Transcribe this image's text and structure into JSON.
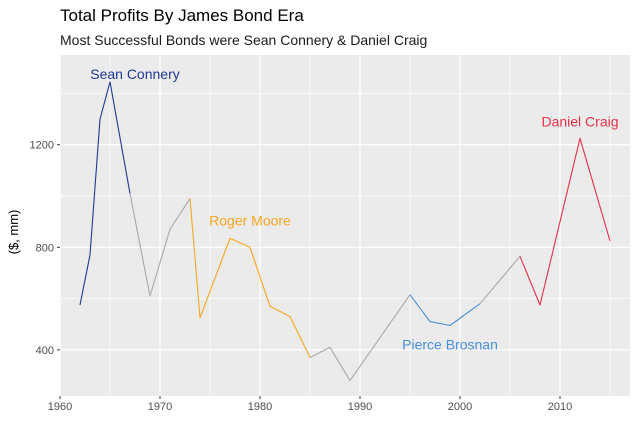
{
  "chart_data": {
    "type": "line",
    "title": "Total Profits By James Bond Era",
    "subtitle": "Most Successful Bonds were Sean Connery & Daniel Craig",
    "xlabel": "",
    "ylabel": "($, mm)",
    "xlim": [
      1960,
      2017
    ],
    "ylim": [
      220,
      1550
    ],
    "x_ticks": [
      1960,
      1970,
      1980,
      1990,
      2000,
      2010
    ],
    "y_ticks": [
      400,
      800,
      1200
    ],
    "grid": true,
    "background": "#EBEBEB",
    "gridline_color": "#FFFFFF",
    "series": [
      {
        "name": "Sean Connery",
        "color": "#1F3A93",
        "label_anchor": [
          1967.5,
          1475
        ],
        "points": [
          [
            1962,
            575
          ],
          [
            1963,
            770
          ],
          [
            1964,
            1300
          ],
          [
            1965,
            1445
          ],
          [
            1967,
            1010
          ]
        ]
      },
      {
        "name": "",
        "color": "#A9A9A9",
        "label_anchor": null,
        "points": [
          [
            1967,
            1010
          ],
          [
            1969,
            610
          ],
          [
            1971,
            870
          ],
          [
            1973,
            990
          ]
        ]
      },
      {
        "name": "Roger Moore",
        "color": "#F5A623",
        "label_anchor": [
          1979,
          905
        ],
        "points": [
          [
            1973,
            990
          ],
          [
            1974,
            525
          ],
          [
            1977,
            835
          ],
          [
            1979,
            800
          ],
          [
            1981,
            570
          ],
          [
            1983,
            530
          ],
          [
            1985,
            370
          ]
        ]
      },
      {
        "name": "",
        "color": "#A9A9A9",
        "label_anchor": null,
        "points": [
          [
            1985,
            370
          ],
          [
            1987,
            410
          ],
          [
            1989,
            280
          ],
          [
            1995,
            615
          ]
        ]
      },
      {
        "name": "Pierce Brosnan",
        "color": "#4A90D9",
        "label_anchor": [
          1999,
          420
        ],
        "points": [
          [
            1995,
            615
          ],
          [
            1997,
            510
          ],
          [
            1999,
            495
          ],
          [
            2002,
            580
          ]
        ]
      },
      {
        "name": "",
        "color": "#A9A9A9",
        "label_anchor": null,
        "points": [
          [
            2002,
            580
          ],
          [
            2006,
            765
          ]
        ]
      },
      {
        "name": "Daniel Craig",
        "color": "#E8304A",
        "label_anchor": [
          2012,
          1290
        ],
        "points": [
          [
            2006,
            765
          ],
          [
            2008,
            575
          ],
          [
            2012,
            1225
          ],
          [
            2015,
            825
          ]
        ]
      }
    ]
  }
}
